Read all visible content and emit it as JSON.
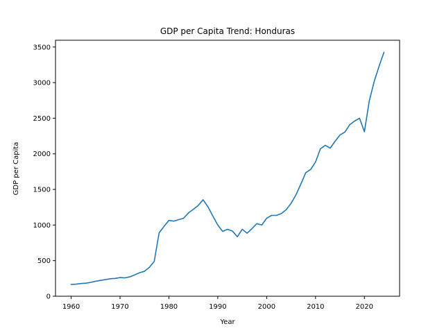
{
  "chart_data": {
    "type": "line",
    "title": "GDP per Capita Trend: Honduras",
    "xlabel": "Year",
    "ylabel": "GDP per Capita",
    "xlim": [
      1956.8,
      2027.2
    ],
    "ylim": [
      0,
      3595
    ],
    "xticks": [
      1960,
      1970,
      1980,
      1990,
      2000,
      2010,
      2020
    ],
    "yticks": [
      0,
      500,
      1000,
      1500,
      2000,
      2500,
      3000,
      3500
    ],
    "grid": false,
    "line_color": "#1f77b4",
    "series": [
      {
        "x": [
          1960,
          1961,
          1962,
          1963,
          1964,
          1965,
          1966,
          1967,
          1968,
          1969,
          1970,
          1971,
          1972,
          1973,
          1974,
          1975,
          1976,
          1977,
          1978,
          1979,
          1980,
          1981,
          1982,
          1983,
          1984,
          1985,
          1986,
          1987,
          1988,
          1989,
          1990,
          1991,
          1992,
          1993,
          1994,
          1995,
          1996,
          1997,
          1998,
          1999,
          2000,
          2001,
          2002,
          2003,
          2004,
          2005,
          2006,
          2007,
          2008,
          2009,
          2010,
          2011,
          2012,
          2013,
          2014,
          2015,
          2016,
          2017,
          2018,
          2019,
          2020,
          2021,
          2022,
          2023,
          2024
        ],
        "y": [
          165,
          170,
          178,
          183,
          195,
          210,
          222,
          233,
          245,
          250,
          262,
          258,
          272,
          300,
          330,
          350,
          405,
          490,
          890,
          980,
          1065,
          1055,
          1075,
          1095,
          1170,
          1220,
          1275,
          1355,
          1255,
          1125,
          1000,
          910,
          940,
          915,
          835,
          940,
          885,
          950,
          1020,
          1000,
          1095,
          1135,
          1135,
          1160,
          1215,
          1305,
          1425,
          1575,
          1735,
          1780,
          1885,
          2070,
          2120,
          2080,
          2175,
          2265,
          2305,
          2410,
          2460,
          2500,
          2310,
          2745,
          3015,
          3230,
          3425
        ]
      }
    ]
  }
}
